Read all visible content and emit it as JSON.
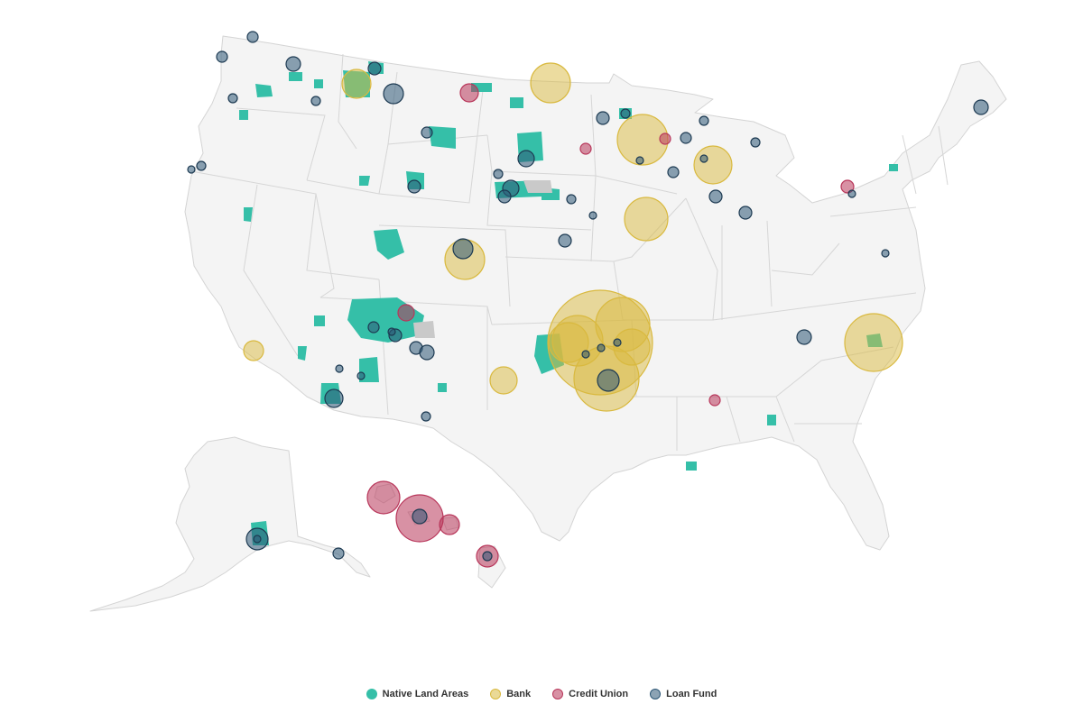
{
  "colors": {
    "native": "#35bfa8",
    "bank": "#d9b93f",
    "credit_union": "#b8365a",
    "loan_fund": "#2d5776",
    "land": "#f4f4f4",
    "border": "#d4d4d4"
  },
  "legend": {
    "native": "Native Land Areas",
    "bank": "Bank",
    "credit_union": "Credit Union",
    "loan_fund": "Loan Fund"
  }
}
